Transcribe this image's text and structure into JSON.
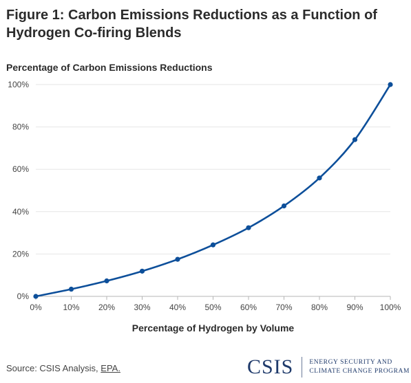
{
  "header": {
    "title": "Figure 1: Carbon Emissions Reductions as a Function of Hydrogen Co-firing Blends"
  },
  "chart_data": {
    "type": "line",
    "title": "Figure 1: Carbon Emissions Reductions as a Function of Hydrogen Co-firing Blends",
    "ylabel": "Percentage of Carbon Emissions Reductions",
    "xlabel": "Percentage of Hydrogen by Volume",
    "x": [
      0,
      10,
      20,
      30,
      40,
      50,
      60,
      70,
      80,
      90,
      100
    ],
    "series": [
      {
        "values": [
          0,
          3.4,
          7.3,
          11.9,
          17.5,
          24.3,
          32.4,
          42.7,
          55.9,
          74.0,
          100
        ]
      }
    ],
    "xlim": [
      0,
      100
    ],
    "ylim": [
      0,
      100
    ],
    "x_ticks": [
      0,
      10,
      20,
      30,
      40,
      50,
      60,
      70,
      80,
      90,
      100
    ],
    "y_ticks": [
      0,
      20,
      40,
      60,
      80,
      100
    ],
    "tick_suffix": "%",
    "grid": "horizontal",
    "line_color": "#0d4f9a",
    "legend": "none"
  },
  "footer": {
    "source_prefix": "Source: CSIS Analysis, ",
    "source_link": "EPA.",
    "logo_text": "CSIS",
    "program_line1": "ENERGY SECURITY AND",
    "program_line2": "CLIMATE CHANGE PROGRAM"
  }
}
